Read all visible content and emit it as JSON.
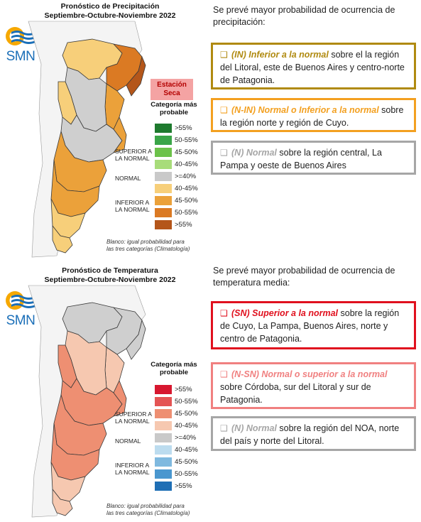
{
  "logo": {
    "text": "SMN"
  },
  "precipitation": {
    "title_line1": "Pronóstico de Precipitación",
    "title_line2": "Septiembre-Octubre-Noviembre 2022",
    "badge": {
      "line1": "Estación",
      "line2": "Seca"
    },
    "legend_title_line1": "Categoría más",
    "legend_title_line2": "probable",
    "group_labels": {
      "superior_line1": "SUPERIOR A",
      "superior_line2": "LA NORMAL",
      "normal": "NORMAL",
      "inferior_line1": "INFERIOR A",
      "inferior_line2": "LA NORMAL"
    },
    "legend": [
      {
        "label": ">55%",
        "color": "#1e7a2e"
      },
      {
        "label": "50-55%",
        "color": "#3aa548"
      },
      {
        "label": "45-50%",
        "color": "#6cc24a"
      },
      {
        "label": "40-45%",
        "color": "#a8dc7a"
      },
      {
        "label": ">=40%",
        "color": "#c9c9c9"
      },
      {
        "label": "40-45%",
        "color": "#f7cf7a"
      },
      {
        "label": "45-50%",
        "color": "#eba13a"
      },
      {
        "label": "50-55%",
        "color": "#db7a23"
      },
      {
        "label": ">55%",
        "color": "#b4561a"
      }
    ],
    "note_line1": "Blanco: igual probabilidad para",
    "note_line2": "las tres categorías (Climatología)",
    "intro": "Se prevé mayor probabilidad de ocurrencia de precipitación:",
    "boxes": [
      {
        "bullet": "❑",
        "category": "(IN) Inferior a la normal",
        "text": " sobre el la región del Litoral, este de Buenos Aires y centro-norte de Patagonia.",
        "color": "#b08a10"
      },
      {
        "bullet": "❑",
        "category": "(N-IN) Normal o Inferior a la normal",
        "text": " sobre la región norte y región de Cuyo.",
        "color": "#f3a020"
      },
      {
        "bullet": "❑",
        "category": "(N) Normal",
        "text": "  sobre la región central, La Pampa y oeste de Buenos Aires",
        "color": "#a6a6a6"
      }
    ]
  },
  "temperature": {
    "title_line1": "Pronóstico de Temperatura",
    "title_line2": "Septiembre-Octubre-Noviembre 2022",
    "legend_title_line1": "Categoría más",
    "legend_title_line2": "probable",
    "group_labels": {
      "superior_line1": "SUPERIOR A",
      "superior_line2": "LA NORMAL",
      "normal": "NORMAL",
      "inferior_line1": "INFERIOR A",
      "inferior_line2": "LA NORMAL"
    },
    "legend": [
      {
        "label": ">55%",
        "color": "#d7172f"
      },
      {
        "label": "50-55%",
        "color": "#e45454"
      },
      {
        "label": "45-50%",
        "color": "#ee8f72"
      },
      {
        "label": "40-45%",
        "color": "#f6c8b0"
      },
      {
        "label": ">=40%",
        "color": "#c9c9c9"
      },
      {
        "label": "40-45%",
        "color": "#bcdcef"
      },
      {
        "label": "45-50%",
        "color": "#7fb9df"
      },
      {
        "label": "50-55%",
        "color": "#4a97cf"
      },
      {
        "label": ">55%",
        "color": "#1f6fb5"
      }
    ],
    "note_line1": "Blanco: igual probabilidad para",
    "note_line2": "las tres categorías (Climatología)",
    "intro": "Se prevé mayor probabilidad de ocurrencia de temperatura media:",
    "boxes": [
      {
        "bullet": "❑",
        "category": "(SN) Superior a la normal",
        "text": " sobre la región de Cuyo, La Pampa, Buenos Aires, norte y centro de Patagonia.",
        "color": "#e0101e"
      },
      {
        "bullet": "❑",
        "category": "(N-SN) Normal o superior a la normal",
        "text": " sobre Córdoba, sur del Litoral y sur de Patagonia.",
        "color": "#f08080"
      },
      {
        "bullet": "❑",
        "category": "(N) Normal",
        "text": " sobre la región del NOA, norte del país y norte del Litoral.",
        "color": "#a6a6a6"
      }
    ]
  }
}
